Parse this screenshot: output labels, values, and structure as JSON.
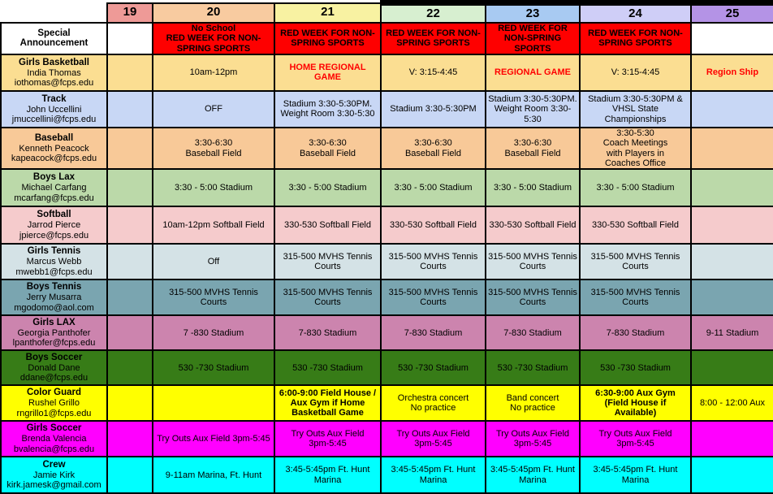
{
  "table_title": "Special Announcement",
  "accent_colors": {
    "announcement_red": "#FE0000",
    "alert_text_red": "#FF0000"
  },
  "columns": [
    {
      "label": "19",
      "bg": "#EE9A97"
    },
    {
      "label": "20",
      "bg": "#F8CBA0"
    },
    {
      "label": "21",
      "bg": "#F8F2A2"
    },
    {
      "label": "22",
      "bg": "#D7EFD0"
    },
    {
      "label": "23",
      "bg": "#A8CAF2"
    },
    {
      "label": "24",
      "bg": "#CFCEF7"
    },
    {
      "label": "25",
      "bg": "#B493E6"
    }
  ],
  "rows": [
    {
      "label": {
        "title": "Special Announcement",
        "person": "",
        "email": ""
      },
      "bg": "#FFFFFF",
      "cells": [
        {
          "text": ""
        },
        {
          "text": "No School\nRED WEEK FOR NON-SPRING SPORTS",
          "bg": "#FE0000",
          "bold": true
        },
        {
          "text": "RED WEEK FOR NON-SPRING SPORTS",
          "bg": "#FE0000",
          "bold": true
        },
        {
          "text": "RED WEEK FOR NON-SPRING SPORTS",
          "bg": "#FE0000",
          "bold": true
        },
        {
          "text": "RED WEEK FOR NON-SPRING SPORTS",
          "bg": "#FE0000",
          "bold": true
        },
        {
          "text": "RED WEEK FOR NON-SPRING SPORTS",
          "bg": "#FE0000",
          "bold": true
        },
        {
          "text": ""
        }
      ]
    },
    {
      "label": {
        "title": "Girls Basketball",
        "person": "India Thomas",
        "email": "iothomas@fcps.edu"
      },
      "bg": "#FBDE92",
      "cells": [
        {
          "text": ""
        },
        {
          "text": "10am-12pm"
        },
        {
          "text": "HOME REGIONAL GAME",
          "color": "#FF0000",
          "bold": true
        },
        {
          "text": "V: 3:15-4:45"
        },
        {
          "text": "REGIONAL GAME",
          "color": "#FF0000",
          "bold": true
        },
        {
          "text": "V: 3:15-4:45"
        },
        {
          "text": "Region Ship",
          "color": "#FF0000",
          "bold": true
        }
      ]
    },
    {
      "label": {
        "title": "Track",
        "person": "John Uccellini",
        "email": "jmuccellini@fcps.edu"
      },
      "bg": "#C8D7F5",
      "cells": [
        {
          "text": ""
        },
        {
          "text": "OFF"
        },
        {
          "text": "Stadium 3:30-5:30PM.\nWeight Room 3:30-5:30"
        },
        {
          "text": "Stadium 3:30-5:30PM"
        },
        {
          "text": "Stadium 3:30-5:30PM.\nWeight Room 3:30-5:30"
        },
        {
          "text": "Stadium 3:30-5:30PM & VHSL State Championships"
        },
        {
          "text": ""
        }
      ]
    },
    {
      "label": {
        "title": "Baseball",
        "person": "Kenneth Peacock",
        "email": "kapeacock@fcps.edu"
      },
      "bg": "#F8C998",
      "cells": [
        {
          "text": ""
        },
        {
          "text": "3:30-6:30\nBaseball Field"
        },
        {
          "text": "3:30-6:30\nBaseball Field"
        },
        {
          "text": "3:30-6:30\nBaseball Field"
        },
        {
          "text": "3:30-6:30\nBaseball Field"
        },
        {
          "text": "3:30-5:30\nCoach Meetings\nwith Players in\nCoaches Office"
        },
        {
          "text": ""
        }
      ]
    },
    {
      "label": {
        "title": "Boys Lax",
        "person": "Michael Carfang",
        "email": "mcarfang@fcps.edu"
      },
      "bg": "#BBD9A9",
      "cells": [
        {
          "text": ""
        },
        {
          "text": "3:30 - 5:00 Stadium"
        },
        {
          "text": "3:30 - 5:00 Stadium"
        },
        {
          "text": "3:30 - 5:00 Stadium"
        },
        {
          "text": "3:30 - 5:00 Stadium"
        },
        {
          "text": "3:30 - 5:00 Stadium"
        },
        {
          "text": ""
        }
      ]
    },
    {
      "label": {
        "title": "Softball",
        "person": "Jarrod Pierce",
        "email": "jpierce@fcps.edu"
      },
      "bg": "#F5CBCC",
      "cells": [
        {
          "text": ""
        },
        {
          "text": "10am-12pm Softball Field"
        },
        {
          "text": "330-530 Softball Field"
        },
        {
          "text": "330-530 Softball Field"
        },
        {
          "text": "330-530 Softball Field"
        },
        {
          "text": "330-530 Softball Field"
        },
        {
          "text": ""
        }
      ]
    },
    {
      "label": {
        "title": "Girls Tennis",
        "person": "Marcus Webb",
        "email": "mwebb1@fcps.edu"
      },
      "bg": "#D4E2E6",
      "cells": [
        {
          "text": ""
        },
        {
          "text": "Off"
        },
        {
          "text": "315-500 MVHS Tennis Courts"
        },
        {
          "text": "315-500 MVHS Tennis Courts"
        },
        {
          "text": "315-500 MVHS Tennis Courts"
        },
        {
          "text": "315-500 MVHS Tennis Courts"
        },
        {
          "text": ""
        }
      ]
    },
    {
      "label": {
        "title": "Boys Tennis",
        "person": "Jerry Musarra",
        "email": "mgodomo@aol.com"
      },
      "bg": "#7AA5B0",
      "cells": [
        {
          "text": ""
        },
        {
          "text": "315-500 MVHS Tennis Courts"
        },
        {
          "text": "315-500 MVHS Tennis Courts"
        },
        {
          "text": "315-500 MVHS Tennis Courts"
        },
        {
          "text": "315-500 MVHS Tennis Courts"
        },
        {
          "text": "315-500 MVHS Tennis Courts"
        },
        {
          "text": ""
        }
      ]
    },
    {
      "label": {
        "title": "Girls LAX",
        "person": "Georgia Panthofer",
        "email": "lpanthofer@fcps.edu"
      },
      "bg": "#CC84AE",
      "cells": [
        {
          "text": ""
        },
        {
          "text": "7 -830 Stadium"
        },
        {
          "text": "7-830 Stadium"
        },
        {
          "text": "7-830 Stadium"
        },
        {
          "text": "7-830 Stadium"
        },
        {
          "text": "7-830 Stadium"
        },
        {
          "text": "9-11 Stadium"
        }
      ]
    },
    {
      "label": {
        "title": "Boys Soccer",
        "person": "Donald Dane",
        "email": "ddane@fcps.edu"
      },
      "bg": "#377C17",
      "cells": [
        {
          "text": ""
        },
        {
          "text": "530 -730 Stadium"
        },
        {
          "text": "530 -730 Stadium"
        },
        {
          "text": "530 -730 Stadium"
        },
        {
          "text": "530 -730 Stadium"
        },
        {
          "text": "530 -730 Stadium"
        },
        {
          "text": ""
        }
      ]
    },
    {
      "label": {
        "title": "Color Guard",
        "person": "Rushel Grillo",
        "email": "rngrillo1@fcps.edu"
      },
      "bg": "#FFFF00",
      "cells": [
        {
          "text": ""
        },
        {
          "text": ""
        },
        {
          "text": "6:00-9:00 Field House /\nAux Gym if Home\nBasketball Game",
          "bold": true
        },
        {
          "text": "Orchestra concert\nNo practice"
        },
        {
          "text": "Band concert\nNo practice"
        },
        {
          "text": "6:30-9:00 Aux Gym\n(Field House if\nAvailable)",
          "bold": true
        },
        {
          "text": "8:00 - 12:00 Aux"
        }
      ]
    },
    {
      "label": {
        "title": "Girls Soccer",
        "person": "Brenda Valencia",
        "email": "bvalencia@fcps.edu"
      },
      "bg": "#FF00FF",
      "cells": [
        {
          "text": ""
        },
        {
          "text": "Try Outs Aux Field 3pm-5:45"
        },
        {
          "text": "Try Outs Aux Field\n3pm-5:45"
        },
        {
          "text": "Try Outs Aux Field\n3pm-5:45"
        },
        {
          "text": "Try Outs Aux Field\n3pm-5:45"
        },
        {
          "text": "Try Outs Aux Field\n3pm-5:45"
        },
        {
          "text": ""
        }
      ]
    },
    {
      "label": {
        "title": "Crew",
        "person": "Jamie Kirk",
        "email": "kirk.jamesk@gmail.com"
      },
      "bg": "#00FFFF",
      "cells": [
        {
          "text": ""
        },
        {
          "text": "9-11am Marina, Ft. Hunt"
        },
        {
          "text": "3:45-5:45pm Ft. Hunt\nMarina"
        },
        {
          "text": "3:45-5:45pm Ft. Hunt\nMarina"
        },
        {
          "text": "3:45-5:45pm Ft. Hunt\nMarina"
        },
        {
          "text": "3:45-5:45pm Ft. Hunt\nMarina"
        },
        {
          "text": ""
        }
      ]
    }
  ]
}
